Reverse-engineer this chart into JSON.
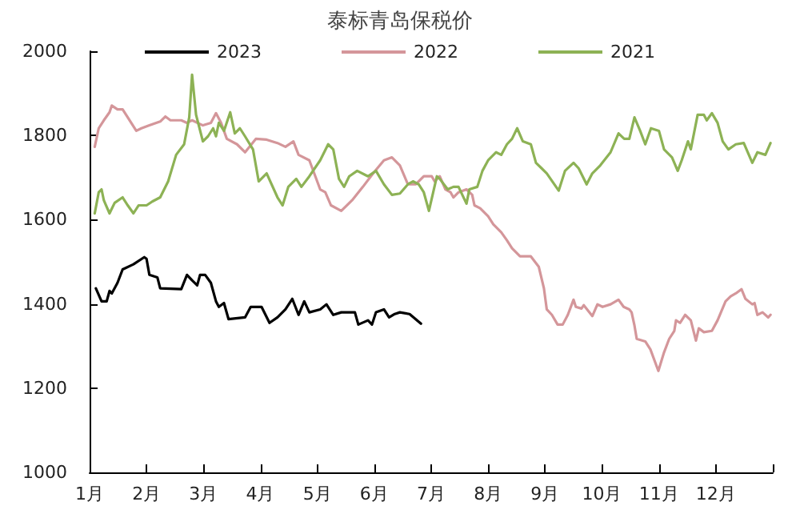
{
  "chart_data": {
    "type": "line",
    "title": "泰标青岛保税价",
    "legend": "top",
    "grid": false,
    "marker": "none",
    "line_style": "solid",
    "xlim": [
      1,
      13
    ],
    "xticks": [
      {
        "value": 1,
        "label": "1月"
      },
      {
        "value": 2,
        "label": "2月"
      },
      {
        "value": 3,
        "label": "3月"
      },
      {
        "value": 4,
        "label": "4月"
      },
      {
        "value": 5,
        "label": "5月"
      },
      {
        "value": 6,
        "label": "6月"
      },
      {
        "value": 7,
        "label": "7月"
      },
      {
        "value": 8,
        "label": "8月"
      },
      {
        "value": 9,
        "label": "9月"
      },
      {
        "value": 10,
        "label": "10月"
      },
      {
        "value": 11,
        "label": "11月"
      },
      {
        "value": 12,
        "label": "12月"
      },
      {
        "value": 13,
        "label": null
      }
    ],
    "ylim": [
      1000,
      2000
    ],
    "yticks": [
      1000,
      1200,
      1400,
      1600,
      1800,
      2000
    ],
    "series": [
      {
        "name": "2023",
        "color": "#000000",
        "x": [
          1.11,
          1.21,
          1.3,
          1.35,
          1.39,
          1.49,
          1.58,
          1.77,
          1.96,
          2.0,
          2.05,
          2.19,
          2.24,
          2.61,
          2.71,
          2.8,
          2.89,
          2.94,
          3.03,
          3.13,
          3.22,
          3.27,
          3.36,
          3.44,
          3.73,
          3.83,
          4.02,
          4.16,
          4.3,
          4.44,
          4.56,
          4.67,
          4.77,
          4.86,
          5.05,
          5.16,
          5.28,
          5.42,
          5.66,
          5.72,
          5.89,
          5.96,
          6.03,
          6.17,
          6.26,
          6.36,
          6.45,
          6.62,
          6.82
        ],
        "values": [
          1437,
          1406,
          1406,
          1431,
          1425,
          1450,
          1482,
          1494,
          1511,
          1507,
          1469,
          1463,
          1437,
          1435,
          1469,
          1456,
          1444,
          1469,
          1469,
          1450,
          1406,
          1393,
          1402,
          1364,
          1368,
          1393,
          1393,
          1355,
          1368,
          1387,
          1412,
          1374,
          1406,
          1380,
          1387,
          1399,
          1374,
          1380,
          1380,
          1351,
          1361,
          1351,
          1380,
          1387,
          1368,
          1376,
          1380,
          1376,
          1353
        ]
      },
      {
        "name": "2022",
        "color": "#d4969a",
        "x": [
          1.09,
          1.16,
          1.25,
          1.35,
          1.39,
          1.49,
          1.58,
          1.67,
          1.82,
          1.91,
          2.05,
          2.24,
          2.33,
          2.42,
          2.61,
          2.71,
          2.8,
          2.99,
          3.13,
          3.22,
          3.31,
          3.41,
          3.59,
          3.73,
          3.92,
          4.11,
          4.3,
          4.44,
          4.58,
          4.67,
          4.86,
          5.05,
          5.14,
          5.24,
          5.42,
          5.61,
          5.8,
          5.98,
          6.17,
          6.31,
          6.45,
          6.59,
          6.73,
          6.87,
          7.01,
          7.06,
          7.15,
          7.25,
          7.34,
          7.39,
          7.48,
          7.62,
          7.72,
          7.76,
          7.86,
          8.0,
          8.09,
          8.23,
          8.33,
          8.42,
          8.56,
          8.75,
          8.89,
          8.98,
          9.03,
          9.12,
          9.22,
          9.31,
          9.4,
          9.5,
          9.54,
          9.64,
          9.68,
          9.83,
          9.92,
          10.01,
          10.15,
          10.29,
          10.38,
          10.48,
          10.52,
          10.57,
          10.61,
          10.76,
          10.85,
          10.99,
          11.09,
          11.18,
          11.27,
          11.3,
          11.37,
          11.46,
          11.56,
          11.65,
          11.7,
          11.79,
          11.93,
          12.03,
          12.17,
          12.26,
          12.35,
          12.45,
          12.52,
          12.64,
          12.68,
          12.73,
          12.82,
          12.92,
          12.96
        ],
        "values": [
          1773,
          1817,
          1836,
          1855,
          1871,
          1862,
          1862,
          1843,
          1811,
          1817,
          1824,
          1833,
          1845,
          1836,
          1836,
          1830,
          1836,
          1824,
          1830,
          1853,
          1830,
          1792,
          1779,
          1760,
          1792,
          1790,
          1782,
          1773,
          1786,
          1754,
          1741,
          1672,
          1665,
          1634,
          1621,
          1646,
          1678,
          1710,
          1741,
          1748,
          1729,
          1684,
          1684,
          1703,
          1703,
          1691,
          1703,
          1672,
          1665,
          1653,
          1665,
          1672,
          1659,
          1634,
          1627,
          1608,
          1589,
          1570,
          1551,
          1532,
          1513,
          1513,
          1488,
          1437,
          1387,
          1374,
          1351,
          1351,
          1374,
          1410,
          1393,
          1389,
          1397,
          1371,
          1399,
          1393,
          1399,
          1410,
          1393,
          1387,
          1380,
          1349,
          1317,
          1311,
          1292,
          1241,
          1285,
          1317,
          1336,
          1361,
          1355,
          1374,
          1361,
          1313,
          1342,
          1333,
          1336,
          1361,
          1406,
          1418,
          1425,
          1435,
          1412,
          1399,
          1402,
          1374,
          1380,
          1368,
          1374
        ]
      },
      {
        "name": "2021",
        "color": "#8db255",
        "x": [
          1.09,
          1.16,
          1.21,
          1.25,
          1.35,
          1.44,
          1.58,
          1.67,
          1.77,
          1.86,
          2.0,
          2.1,
          2.24,
          2.38,
          2.52,
          2.66,
          2.75,
          2.8,
          2.87,
          2.99,
          3.08,
          3.17,
          3.22,
          3.27,
          3.36,
          3.47,
          3.55,
          3.64,
          3.73,
          3.87,
          3.97,
          4.11,
          4.3,
          4.39,
          4.49,
          4.63,
          4.72,
          4.86,
          5.05,
          5.19,
          5.28,
          5.38,
          5.47,
          5.56,
          5.7,
          5.89,
          6.03,
          6.17,
          6.31,
          6.45,
          6.59,
          6.68,
          6.78,
          6.87,
          6.96,
          7.1,
          7.15,
          7.29,
          7.39,
          7.48,
          7.62,
          7.67,
          7.81,
          7.9,
          8.0,
          8.14,
          8.23,
          8.33,
          8.42,
          8.51,
          8.61,
          8.75,
          8.84,
          8.94,
          9.03,
          9.24,
          9.35,
          9.5,
          9.59,
          9.73,
          9.83,
          9.97,
          10.15,
          10.29,
          10.39,
          10.48,
          10.57,
          10.67,
          10.76,
          10.86,
          11.0,
          11.09,
          11.23,
          11.33,
          11.4,
          11.51,
          11.56,
          11.68,
          11.79,
          11.84,
          11.93,
          12.03,
          12.12,
          12.22,
          12.35,
          12.49,
          12.64,
          12.73,
          12.87,
          12.96
        ],
        "values": [
          1615,
          1665,
          1672,
          1646,
          1615,
          1640,
          1653,
          1634,
          1615,
          1634,
          1634,
          1643,
          1653,
          1691,
          1754,
          1779,
          1843,
          1944,
          1849,
          1786,
          1798,
          1817,
          1798,
          1830,
          1811,
          1855,
          1805,
          1817,
          1798,
          1767,
          1691,
          1710,
          1653,
          1634,
          1678,
          1697,
          1678,
          1703,
          1741,
          1779,
          1767,
          1697,
          1678,
          1703,
          1716,
          1703,
          1716,
          1684,
          1659,
          1662,
          1684,
          1691,
          1684,
          1665,
          1621,
          1703,
          1697,
          1672,
          1678,
          1678,
          1638,
          1672,
          1678,
          1716,
          1741,
          1760,
          1754,
          1779,
          1792,
          1817,
          1786,
          1779,
          1735,
          1722,
          1710,
          1669,
          1716,
          1735,
          1722,
          1684,
          1710,
          1729,
          1760,
          1805,
          1792,
          1792,
          1843,
          1811,
          1779,
          1817,
          1811,
          1767,
          1748,
          1716,
          1741,
          1786,
          1767,
          1849,
          1849,
          1836,
          1853,
          1830,
          1786,
          1767,
          1779,
          1782,
          1735,
          1760,
          1754,
          1782
        ]
      }
    ]
  }
}
